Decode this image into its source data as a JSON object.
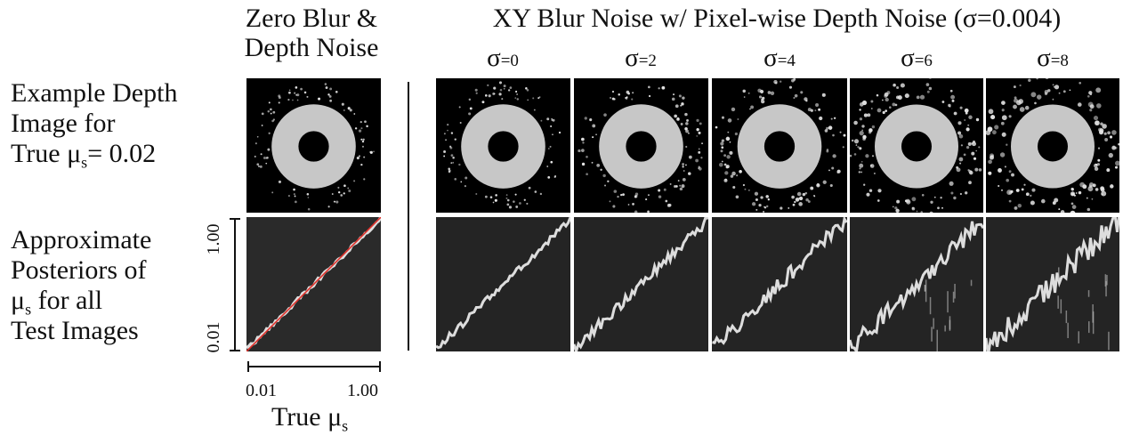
{
  "columns": {
    "baseline_title_line1": "Zero Blur &",
    "baseline_title_line2": "Depth Noise",
    "noise_title": "XY Blur Noise w/ Pixel-wise Depth Noise (σ=0.004)",
    "sigma_symbol": "σ",
    "sigma_values": [
      "=0",
      "=2",
      "=4",
      "=6",
      "=8"
    ]
  },
  "rows": {
    "row1_line1": "Example Depth",
    "row1_line2": "Image for",
    "row1_line3_prefix": "True μ",
    "row1_line3_sub": "s",
    "row1_line3_suffix": "= 0.02",
    "row2_line1": "Approximate",
    "row2_line2": "Posteriors of",
    "row2_line3_prefix": "μ",
    "row2_line3_sub": "s",
    "row2_line3_suffix": " for all",
    "row2_line4": "Test Images"
  },
  "axes": {
    "y_tick_top": "1.00",
    "y_tick_bottom": "0.01",
    "x_tick_left": "0.01",
    "x_tick_right": "1.00",
    "x_label_prefix": "True μ",
    "x_label_sub": "s"
  },
  "colors": {
    "panel_background": "#000000",
    "ring": "#d8d8d8",
    "posterior_band": "#f2f2f2",
    "identity_line": "#e0302a"
  }
}
